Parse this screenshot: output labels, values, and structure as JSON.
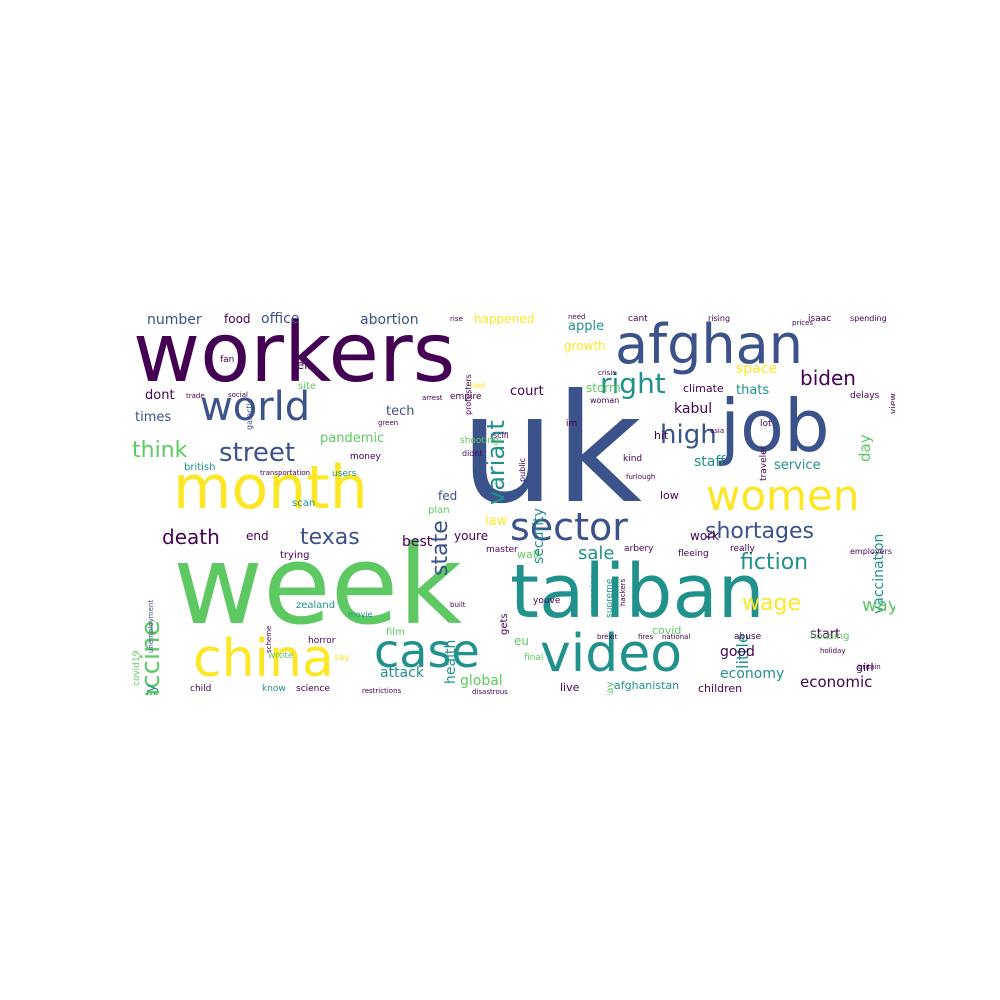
{
  "colors": {
    "background": "#ffffff",
    "palette": [
      "#440154",
      "#3b528b",
      "#21918c",
      "#5ec962",
      "#fde725"
    ]
  },
  "words": {
    "uk": "uk",
    "week": "week",
    "workers": "workers",
    "job": "job",
    "month": "month",
    "taliban": "taliban",
    "afghan": "afghan",
    "china": "china",
    "video": "video",
    "women": "women",
    "world": "world",
    "case": "case",
    "sector": "sector",
    "vaccine": "vaccine",
    "right": "right",
    "shortages": "shortages",
    "street": "street",
    "high": "high",
    "biden": "biden",
    "variant": "variant",
    "state": "state",
    "fiction": "fiction",
    "think": "think",
    "texas": "texas",
    "death": "death",
    "wage": "wage",
    "vaccination": "vaccination",
    "sale": "sale",
    "little": "little",
    "way": "way",
    "property": "property",
    "health": "health",
    "security": "security",
    "attack": "attack",
    "global": "global",
    "economic": "economic",
    "economy": "economy",
    "good": "good",
    "apple": "apple",
    "space": "space",
    "thats": "thats",
    "kabul": "kabul",
    "staff": "staff",
    "service": "service",
    "court": "court",
    "tech": "tech",
    "times": "times",
    "dont": "dont",
    "office": "office",
    "abortion": "abortion",
    "number": "number",
    "food": "food",
    "happened": "happened",
    "pandemic": "pandemic",
    "day": "day",
    "delta": "delta",
    "covid": "covid",
    "work": "work",
    "youre": "youre",
    "end": "end",
    "best": "best",
    "law": "law",
    "fed": "fed",
    "storm": "storm",
    "growth": "growth",
    "climate": "climate",
    "low": "low",
    "hit": "hit",
    "start": "start",
    "children": "children",
    "afghanistan": "afghanistan",
    "live": "live",
    "child": "child",
    "know": "know",
    "science": "science",
    "film": "film",
    "zealand": "zealand",
    "british": "british",
    "tell": "tell",
    "site": "site",
    "fan": "fan",
    "galactic": "galactic",
    "wrote": "wrote",
    "horror": "horror",
    "movie": "movie",
    "say": "say",
    "eu": "eu",
    "final": "final",
    "gets": "gets",
    "youve": "youve",
    "scanning": "scanning",
    "today": "today",
    "supreme": "supreme",
    "wall": "wall",
    "plan": "plan",
    "trying": "trying",
    "scan": "scan",
    "users": "users",
    "money": "money",
    "isaac": "isaac",
    "cant": "cant",
    "rising": "rising",
    "spending": "spending",
    "view": "view",
    "girl": "girl",
    "housing": "housing",
    "abuse": "abuse",
    "fleeing": "fleeing",
    "really": "really",
    "employers": "employers",
    "delays": "delays",
    "traveler": "traveler",
    "lot": "lot",
    "kind": "kind",
    "furlough": "furlough",
    "arbery": "arbery",
    "master": "master",
    "scifi": "scifi",
    "shooting": "shooting",
    "public": "public",
    "didnt": "didnt",
    "empire": "empire",
    "woman": "woman",
    "im": "im",
    "protesters": "protesters",
    "covid19": "covid19",
    "unemployment": "unemployment",
    "restrictions": "restrictions",
    "disastrous": "disastrous",
    "transportation": "transportation",
    "social": "social",
    "trade": "trade",
    "brexit": "brexit",
    "fires": "fires",
    "national": "national",
    "holiday": "holiday",
    "britain": "britain",
    "hackers": "hackers",
    "built": "built",
    "scheme": "scheme",
    "prices": "prices",
    "crisis": "crisis",
    "green": "green",
    "hed": "hed",
    "rise": "rise",
    "need": "need",
    "asia": "asia",
    "arrest": "arrest"
  }
}
